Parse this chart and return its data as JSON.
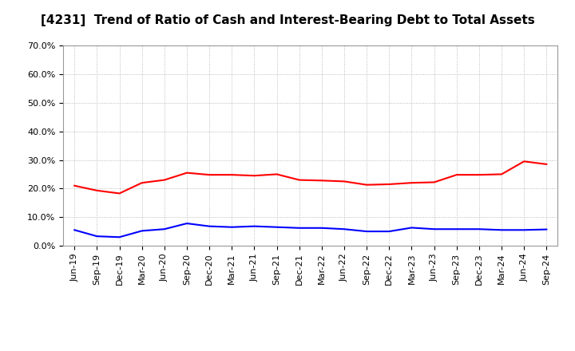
{
  "title": "[4231]  Trend of Ratio of Cash and Interest-Bearing Debt to Total Assets",
  "x_labels": [
    "Jun-19",
    "Sep-19",
    "Dec-19",
    "Mar-20",
    "Jun-20",
    "Sep-20",
    "Dec-20",
    "Mar-21",
    "Jun-21",
    "Sep-21",
    "Dec-21",
    "Mar-22",
    "Jun-22",
    "Sep-22",
    "Dec-22",
    "Mar-23",
    "Jun-23",
    "Sep-23",
    "Dec-23",
    "Mar-24",
    "Jun-24",
    "Sep-24"
  ],
  "cash": [
    0.21,
    0.193,
    0.183,
    0.22,
    0.23,
    0.255,
    0.248,
    0.248,
    0.245,
    0.25,
    0.23,
    0.228,
    0.225,
    0.213,
    0.215,
    0.22,
    0.222,
    0.248,
    0.248,
    0.25,
    0.295,
    0.285
  ],
  "interest_bearing_debt": [
    0.055,
    0.033,
    0.03,
    0.052,
    0.058,
    0.078,
    0.068,
    0.065,
    0.068,
    0.065,
    0.062,
    0.062,
    0.058,
    0.05,
    0.05,
    0.063,
    0.058,
    0.058,
    0.058,
    0.055,
    0.055,
    0.057
  ],
  "cash_color": "#FF0000",
  "ibd_color": "#0000FF",
  "ylim": [
    0.0,
    0.7
  ],
  "yticks": [
    0.0,
    0.1,
    0.2,
    0.3,
    0.4,
    0.5,
    0.6,
    0.7
  ],
  "background_color": "#FFFFFF",
  "plot_bg_color": "#FFFFFF",
  "grid_color": "#AAAAAA",
  "title_fontsize": 11,
  "tick_fontsize": 8,
  "legend_fontsize": 10,
  "line_width": 1.5
}
